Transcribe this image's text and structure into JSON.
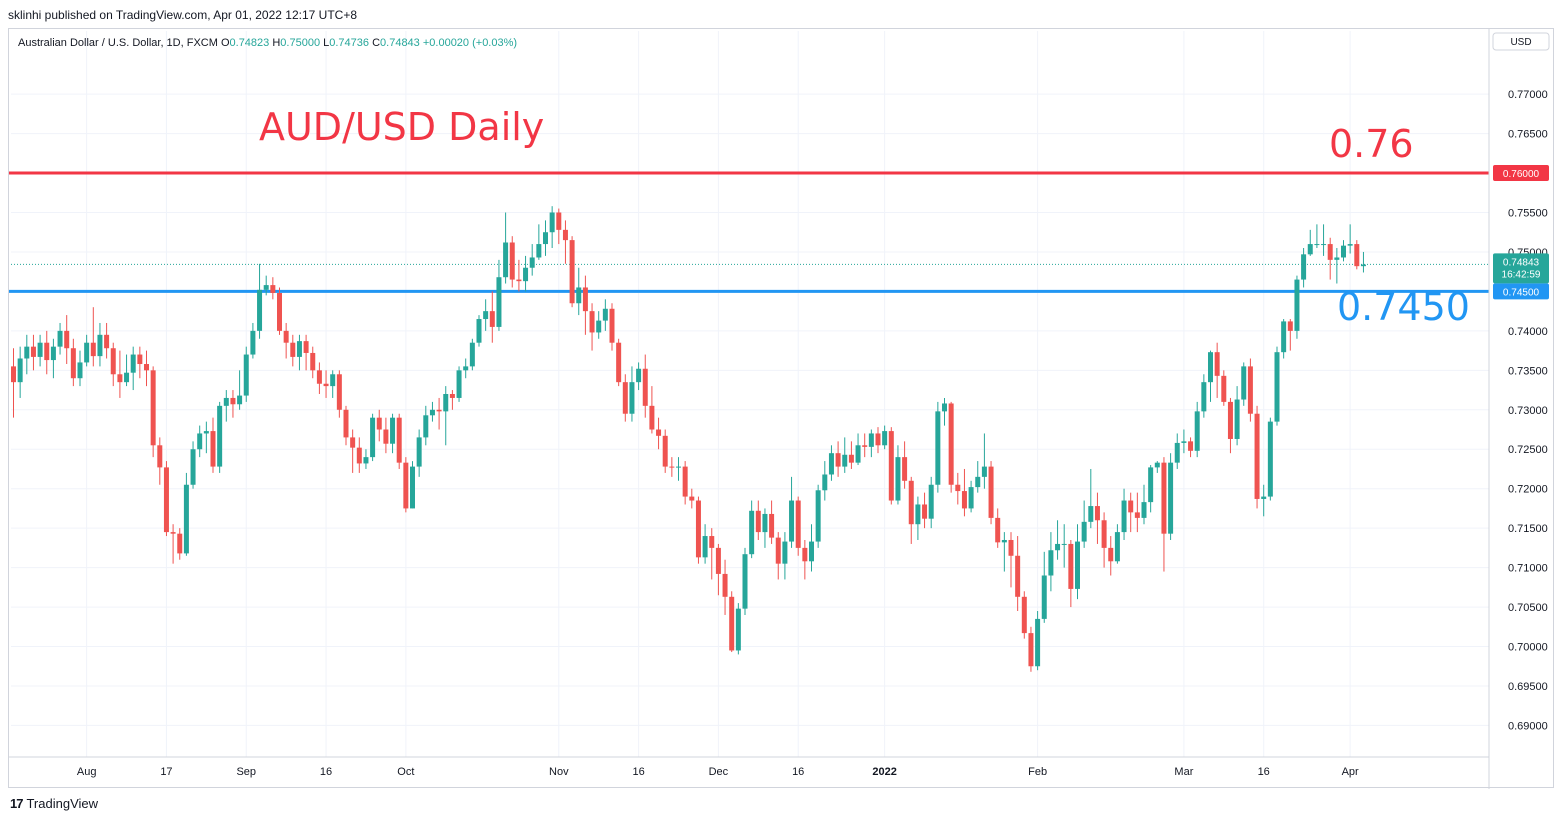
{
  "header": {
    "published": "sklinhi published on TradingView.com, Apr 01, 2022 12:17 UTC+8",
    "symbol": "Australian Dollar / U.S. Dollar, 1D, FXCM",
    "ohlc": [
      {
        "k": "O",
        "v": "0.74823"
      },
      {
        "k": "H",
        "v": "0.75000"
      },
      {
        "k": "L",
        "v": "0.74736"
      },
      {
        "k": "C",
        "v": "0.74843"
      }
    ],
    "change": "+0.00020 (+0.03%)"
  },
  "currency_button": "USD",
  "footer": {
    "logo": "17",
    "brand": "TradingView"
  },
  "colors": {
    "up": "#26a69a",
    "down": "#ef5350",
    "resistance": "#f23645",
    "support": "#2196f3",
    "grid": "#f0f3fa",
    "axis_text": "#131722"
  },
  "annotations": {
    "title": "AUD/USD Daily",
    "resistance_text": "0.76",
    "support_text": "0.7450"
  },
  "chart_data": {
    "type": "candlestick",
    "ylim": [
      0.686,
      0.778
    ],
    "y_ticks": [
      "0.77000",
      "0.76500",
      "0.76000",
      "0.75500",
      "0.75000",
      "0.74500",
      "0.74000",
      "0.73500",
      "0.73000",
      "0.72500",
      "0.72000",
      "0.71500",
      "0.71000",
      "0.70500",
      "0.70000",
      "0.69500",
      "0.69000"
    ],
    "x_labels": [
      {
        "label": "Aug",
        "i": 11,
        "bold": false
      },
      {
        "label": "17",
        "i": 23,
        "bold": false
      },
      {
        "label": "Sep",
        "i": 35,
        "bold": false
      },
      {
        "label": "16",
        "i": 47,
        "bold": false
      },
      {
        "label": "Oct",
        "i": 59,
        "bold": false
      },
      {
        "label": "Nov",
        "i": 82,
        "bold": false
      },
      {
        "label": "16",
        "i": 94,
        "bold": false
      },
      {
        "label": "Dec",
        "i": 106,
        "bold": false
      },
      {
        "label": "16",
        "i": 118,
        "bold": false
      },
      {
        "label": "2022",
        "i": 131,
        "bold": true
      },
      {
        "label": "Feb",
        "i": 154,
        "bold": false
      },
      {
        "label": "Mar",
        "i": 176,
        "bold": false
      },
      {
        "label": "16",
        "i": 188,
        "bold": false
      },
      {
        "label": "Apr",
        "i": 201,
        "bold": false
      }
    ],
    "hlines": [
      {
        "value": 0.76,
        "label": "0.76000",
        "color": "#f23645"
      },
      {
        "value": 0.745,
        "label": "0.74500",
        "color": "#2196f3"
      }
    ],
    "last_price": {
      "value": 0.74843,
      "label": "0.74843",
      "countdown": "16:42:59"
    },
    "candles": [
      [
        0.7355,
        0.7335,
        0.7378,
        0.729
      ],
      [
        0.7335,
        0.7365,
        0.738,
        0.7315
      ],
      [
        0.7365,
        0.738,
        0.7395,
        0.7345
      ],
      [
        0.738,
        0.7367,
        0.7395,
        0.735
      ],
      [
        0.7367,
        0.7385,
        0.7395,
        0.7355
      ],
      [
        0.7385,
        0.7363,
        0.74,
        0.7345
      ],
      [
        0.7363,
        0.738,
        0.739,
        0.734
      ],
      [
        0.738,
        0.74,
        0.741,
        0.737
      ],
      [
        0.74,
        0.7378,
        0.742,
        0.7358
      ],
      [
        0.7378,
        0.734,
        0.739,
        0.733
      ],
      [
        0.734,
        0.736,
        0.7375,
        0.733
      ],
      [
        0.736,
        0.7385,
        0.7395,
        0.7355
      ],
      [
        0.7385,
        0.7368,
        0.743,
        0.7355
      ],
      [
        0.7368,
        0.7395,
        0.741,
        0.7355
      ],
      [
        0.7395,
        0.7378,
        0.741,
        0.7365
      ],
      [
        0.7378,
        0.7345,
        0.7385,
        0.733
      ],
      [
        0.7345,
        0.7335,
        0.7375,
        0.7315
      ],
      [
        0.7335,
        0.7347,
        0.737,
        0.733
      ],
      [
        0.7347,
        0.737,
        0.738,
        0.7325
      ],
      [
        0.737,
        0.7358,
        0.738,
        0.734
      ],
      [
        0.7358,
        0.735,
        0.7375,
        0.733
      ],
      [
        0.735,
        0.7255,
        0.7355,
        0.724
      ],
      [
        0.7255,
        0.7227,
        0.7265,
        0.7205
      ],
      [
        0.7227,
        0.7145,
        0.7235,
        0.714
      ],
      [
        0.7145,
        0.7143,
        0.7155,
        0.7105
      ],
      [
        0.7143,
        0.7118,
        0.715,
        0.711
      ],
      [
        0.7118,
        0.7205,
        0.722,
        0.7115
      ],
      [
        0.7205,
        0.725,
        0.726,
        0.72
      ],
      [
        0.725,
        0.727,
        0.728,
        0.724
      ],
      [
        0.727,
        0.7273,
        0.7285,
        0.7245
      ],
      [
        0.7273,
        0.7228,
        0.729,
        0.722
      ],
      [
        0.7228,
        0.7305,
        0.731,
        0.722
      ],
      [
        0.7305,
        0.7315,
        0.7325,
        0.7285
      ],
      [
        0.7315,
        0.7307,
        0.7325,
        0.729
      ],
      [
        0.7307,
        0.7318,
        0.735,
        0.73
      ],
      [
        0.7318,
        0.737,
        0.738,
        0.731
      ],
      [
        0.737,
        0.74,
        0.741,
        0.7365
      ],
      [
        0.74,
        0.7452,
        0.7485,
        0.739
      ],
      [
        0.7452,
        0.7458,
        0.747,
        0.7445
      ],
      [
        0.7458,
        0.7448,
        0.7468,
        0.744
      ],
      [
        0.7448,
        0.74,
        0.7455,
        0.7395
      ],
      [
        0.74,
        0.7385,
        0.741,
        0.7365
      ],
      [
        0.7385,
        0.7367,
        0.7395,
        0.7355
      ],
      [
        0.7367,
        0.7387,
        0.7395,
        0.735
      ],
      [
        0.7387,
        0.7372,
        0.7395,
        0.735
      ],
      [
        0.7372,
        0.735,
        0.738,
        0.734
      ],
      [
        0.735,
        0.7333,
        0.736,
        0.732
      ],
      [
        0.7333,
        0.733,
        0.735,
        0.7315
      ],
      [
        0.733,
        0.7345,
        0.735,
        0.7315
      ],
      [
        0.7345,
        0.73,
        0.735,
        0.729
      ],
      [
        0.73,
        0.7265,
        0.7305,
        0.7255
      ],
      [
        0.7265,
        0.7252,
        0.7275,
        0.722
      ],
      [
        0.7252,
        0.7232,
        0.7265,
        0.722
      ],
      [
        0.7232,
        0.724,
        0.725,
        0.7225
      ],
      [
        0.724,
        0.729,
        0.7295,
        0.7235
      ],
      [
        0.729,
        0.7275,
        0.73,
        0.726
      ],
      [
        0.7275,
        0.7257,
        0.729,
        0.7245
      ],
      [
        0.7257,
        0.729,
        0.7295,
        0.7245
      ],
      [
        0.729,
        0.7233,
        0.7295,
        0.7225
      ],
      [
        0.7233,
        0.7175,
        0.724,
        0.717
      ],
      [
        0.7175,
        0.7228,
        0.7235,
        0.7175
      ],
      [
        0.7228,
        0.7265,
        0.7275,
        0.7215
      ],
      [
        0.7265,
        0.7293,
        0.7305,
        0.7255
      ],
      [
        0.7293,
        0.73,
        0.731,
        0.7285
      ],
      [
        0.73,
        0.7298,
        0.7315,
        0.7275
      ],
      [
        0.7298,
        0.732,
        0.733,
        0.7255
      ],
      [
        0.732,
        0.7315,
        0.7325,
        0.73
      ],
      [
        0.7315,
        0.735,
        0.7355,
        0.731
      ],
      [
        0.735,
        0.7355,
        0.7365,
        0.734
      ],
      [
        0.7355,
        0.7385,
        0.739,
        0.735
      ],
      [
        0.7385,
        0.7415,
        0.742,
        0.738
      ],
      [
        0.7415,
        0.7425,
        0.744,
        0.74
      ],
      [
        0.7425,
        0.7405,
        0.745,
        0.7385
      ],
      [
        0.7405,
        0.7468,
        0.749,
        0.74
      ],
      [
        0.7468,
        0.7512,
        0.755,
        0.746
      ],
      [
        0.7512,
        0.7465,
        0.752,
        0.7455
      ],
      [
        0.7465,
        0.7463,
        0.749,
        0.745
      ],
      [
        0.7463,
        0.748,
        0.7495,
        0.745
      ],
      [
        0.748,
        0.7493,
        0.751,
        0.747
      ],
      [
        0.7493,
        0.751,
        0.7535,
        0.749
      ],
      [
        0.751,
        0.7525,
        0.754,
        0.7495
      ],
      [
        0.7525,
        0.755,
        0.7558,
        0.7505
      ],
      [
        0.755,
        0.7528,
        0.7555,
        0.751
      ],
      [
        0.7528,
        0.7515,
        0.754,
        0.7485
      ],
      [
        0.7515,
        0.7435,
        0.752,
        0.743
      ],
      [
        0.7435,
        0.7455,
        0.748,
        0.742
      ],
      [
        0.7455,
        0.7425,
        0.747,
        0.7395
      ],
      [
        0.7425,
        0.7398,
        0.7435,
        0.7375
      ],
      [
        0.7398,
        0.7413,
        0.7425,
        0.739
      ],
      [
        0.7413,
        0.7428,
        0.744,
        0.74
      ],
      [
        0.7428,
        0.7385,
        0.7435,
        0.7375
      ],
      [
        0.7385,
        0.7335,
        0.739,
        0.733
      ],
      [
        0.7335,
        0.7295,
        0.7345,
        0.7285
      ],
      [
        0.7295,
        0.7335,
        0.7355,
        0.7285
      ],
      [
        0.7335,
        0.7352,
        0.736,
        0.7325
      ],
      [
        0.7352,
        0.7305,
        0.737,
        0.729
      ],
      [
        0.7305,
        0.7275,
        0.733,
        0.727
      ],
      [
        0.7275,
        0.7267,
        0.729,
        0.725
      ],
      [
        0.7267,
        0.7228,
        0.7275,
        0.722
      ],
      [
        0.7228,
        0.7227,
        0.724,
        0.7215
      ],
      [
        0.7227,
        0.7228,
        0.724,
        0.721
      ],
      [
        0.7228,
        0.719,
        0.7235,
        0.718
      ],
      [
        0.719,
        0.7185,
        0.72,
        0.7175
      ],
      [
        0.7185,
        0.7113,
        0.719,
        0.7105
      ],
      [
        0.7113,
        0.714,
        0.7155,
        0.7105
      ],
      [
        0.714,
        0.7125,
        0.715,
        0.7085
      ],
      [
        0.7125,
        0.7092,
        0.713,
        0.7065
      ],
      [
        0.7092,
        0.7063,
        0.711,
        0.704
      ],
      [
        0.7063,
        0.6995,
        0.707,
        0.6993
      ],
      [
        0.6995,
        0.7048,
        0.7055,
        0.699
      ],
      [
        0.7048,
        0.7117,
        0.7125,
        0.704
      ],
      [
        0.7117,
        0.7172,
        0.7185,
        0.7112
      ],
      [
        0.7172,
        0.7145,
        0.7185,
        0.7135
      ],
      [
        0.7145,
        0.7168,
        0.7175,
        0.7125
      ],
      [
        0.7168,
        0.7138,
        0.7185,
        0.713
      ],
      [
        0.7138,
        0.7105,
        0.7145,
        0.7085
      ],
      [
        0.7105,
        0.7133,
        0.7145,
        0.7085
      ],
      [
        0.7133,
        0.7185,
        0.7215,
        0.7125
      ],
      [
        0.7185,
        0.7125,
        0.719,
        0.7115
      ],
      [
        0.7125,
        0.7108,
        0.7135,
        0.7085
      ],
      [
        0.7108,
        0.7133,
        0.7155,
        0.7095
      ],
      [
        0.7133,
        0.7198,
        0.7205,
        0.7125
      ],
      [
        0.7198,
        0.7218,
        0.7235,
        0.7185
      ],
      [
        0.7218,
        0.7245,
        0.7255,
        0.721
      ],
      [
        0.7245,
        0.7228,
        0.726,
        0.7215
      ],
      [
        0.7228,
        0.7243,
        0.7265,
        0.722
      ],
      [
        0.7243,
        0.7233,
        0.726,
        0.7225
      ],
      [
        0.7233,
        0.7255,
        0.727,
        0.723
      ],
      [
        0.7255,
        0.7253,
        0.727,
        0.724
      ],
      [
        0.7253,
        0.727,
        0.7275,
        0.724
      ],
      [
        0.727,
        0.7255,
        0.7278,
        0.7245
      ],
      [
        0.7255,
        0.7273,
        0.728,
        0.725
      ],
      [
        0.7273,
        0.7185,
        0.7278,
        0.718
      ],
      [
        0.7185,
        0.724,
        0.7255,
        0.718
      ],
      [
        0.724,
        0.721,
        0.726,
        0.72
      ],
      [
        0.721,
        0.7155,
        0.7215,
        0.713
      ],
      [
        0.7155,
        0.718,
        0.719,
        0.7135
      ],
      [
        0.718,
        0.7162,
        0.7195,
        0.715
      ],
      [
        0.7162,
        0.7205,
        0.7215,
        0.715
      ],
      [
        0.7205,
        0.7298,
        0.731,
        0.7195
      ],
      [
        0.7298,
        0.7308,
        0.7315,
        0.728
      ],
      [
        0.7308,
        0.7205,
        0.731,
        0.7195
      ],
      [
        0.7205,
        0.7197,
        0.722,
        0.718
      ],
      [
        0.7197,
        0.7175,
        0.7225,
        0.7165
      ],
      [
        0.7175,
        0.7202,
        0.721,
        0.717
      ],
      [
        0.7202,
        0.7215,
        0.7235,
        0.7195
      ],
      [
        0.7215,
        0.7228,
        0.727,
        0.72
      ],
      [
        0.7228,
        0.7163,
        0.7235,
        0.7155
      ],
      [
        0.7163,
        0.7132,
        0.7175,
        0.7125
      ],
      [
        0.7132,
        0.7135,
        0.7145,
        0.7095
      ],
      [
        0.7135,
        0.7115,
        0.7145,
        0.7075
      ],
      [
        0.7115,
        0.7063,
        0.714,
        0.7045
      ],
      [
        0.7063,
        0.7017,
        0.707,
        0.701
      ],
      [
        0.7017,
        0.6975,
        0.7025,
        0.6968
      ],
      [
        0.6975,
        0.7035,
        0.7045,
        0.697
      ],
      [
        0.7035,
        0.709,
        0.712,
        0.703
      ],
      [
        0.709,
        0.7122,
        0.7145,
        0.707
      ],
      [
        0.7122,
        0.713,
        0.716,
        0.711
      ],
      [
        0.713,
        0.713,
        0.7155,
        0.71
      ],
      [
        0.713,
        0.7073,
        0.7135,
        0.705
      ],
      [
        0.7073,
        0.7133,
        0.7155,
        0.706
      ],
      [
        0.7133,
        0.7158,
        0.7185,
        0.7125
      ],
      [
        0.7158,
        0.7178,
        0.7225,
        0.715
      ],
      [
        0.7178,
        0.716,
        0.7195,
        0.713
      ],
      [
        0.716,
        0.7125,
        0.717,
        0.71
      ],
      [
        0.7125,
        0.7108,
        0.714,
        0.709
      ],
      [
        0.7108,
        0.7145,
        0.7155,
        0.7105
      ],
      [
        0.7145,
        0.7185,
        0.72,
        0.7135
      ],
      [
        0.7185,
        0.717,
        0.7195,
        0.7145
      ],
      [
        0.717,
        0.7163,
        0.7195,
        0.7145
      ],
      [
        0.7163,
        0.7183,
        0.7205,
        0.7155
      ],
      [
        0.7183,
        0.7227,
        0.723,
        0.717
      ],
      [
        0.7227,
        0.7233,
        0.7235,
        0.722
      ],
      [
        0.7233,
        0.7143,
        0.724,
        0.7095
      ],
      [
        0.7143,
        0.7233,
        0.7245,
        0.7135
      ],
      [
        0.7233,
        0.7258,
        0.727,
        0.7225
      ],
      [
        0.7258,
        0.726,
        0.7275,
        0.7245
      ],
      [
        0.726,
        0.7248,
        0.7265,
        0.724
      ],
      [
        0.7248,
        0.7298,
        0.731,
        0.724
      ],
      [
        0.7298,
        0.7335,
        0.7345,
        0.729
      ],
      [
        0.7335,
        0.7373,
        0.7375,
        0.731
      ],
      [
        0.7373,
        0.7343,
        0.7385,
        0.7315
      ],
      [
        0.7343,
        0.731,
        0.735,
        0.7305
      ],
      [
        0.731,
        0.7263,
        0.7315,
        0.7245
      ],
      [
        0.7263,
        0.7313,
        0.733,
        0.7255
      ],
      [
        0.7313,
        0.7355,
        0.736,
        0.7305
      ],
      [
        0.7355,
        0.7295,
        0.7365,
        0.7285
      ],
      [
        0.7295,
        0.7187,
        0.7305,
        0.7175
      ],
      [
        0.7187,
        0.719,
        0.7205,
        0.7165
      ],
      [
        0.719,
        0.7285,
        0.729,
        0.7185
      ],
      [
        0.7285,
        0.7373,
        0.738,
        0.728
      ],
      [
        0.7373,
        0.7412,
        0.7415,
        0.7365
      ],
      [
        0.7412,
        0.74,
        0.7415,
        0.7375
      ],
      [
        0.74,
        0.7465,
        0.747,
        0.739
      ],
      [
        0.7465,
        0.7497,
        0.7505,
        0.7455
      ],
      [
        0.7497,
        0.751,
        0.7528,
        0.7495
      ],
      [
        0.751,
        0.751,
        0.7535,
        0.7505
      ],
      [
        0.751,
        0.751,
        0.7535,
        0.7495
      ],
      [
        0.751,
        0.749,
        0.7518,
        0.7465
      ],
      [
        0.749,
        0.7493,
        0.7505,
        0.746
      ],
      [
        0.7493,
        0.7508,
        0.7515,
        0.7488
      ],
      [
        0.7508,
        0.751,
        0.7535,
        0.7498
      ],
      [
        0.751,
        0.7482,
        0.7515,
        0.7478
      ],
      [
        0.7482,
        0.7484,
        0.75,
        0.7474
      ]
    ]
  }
}
